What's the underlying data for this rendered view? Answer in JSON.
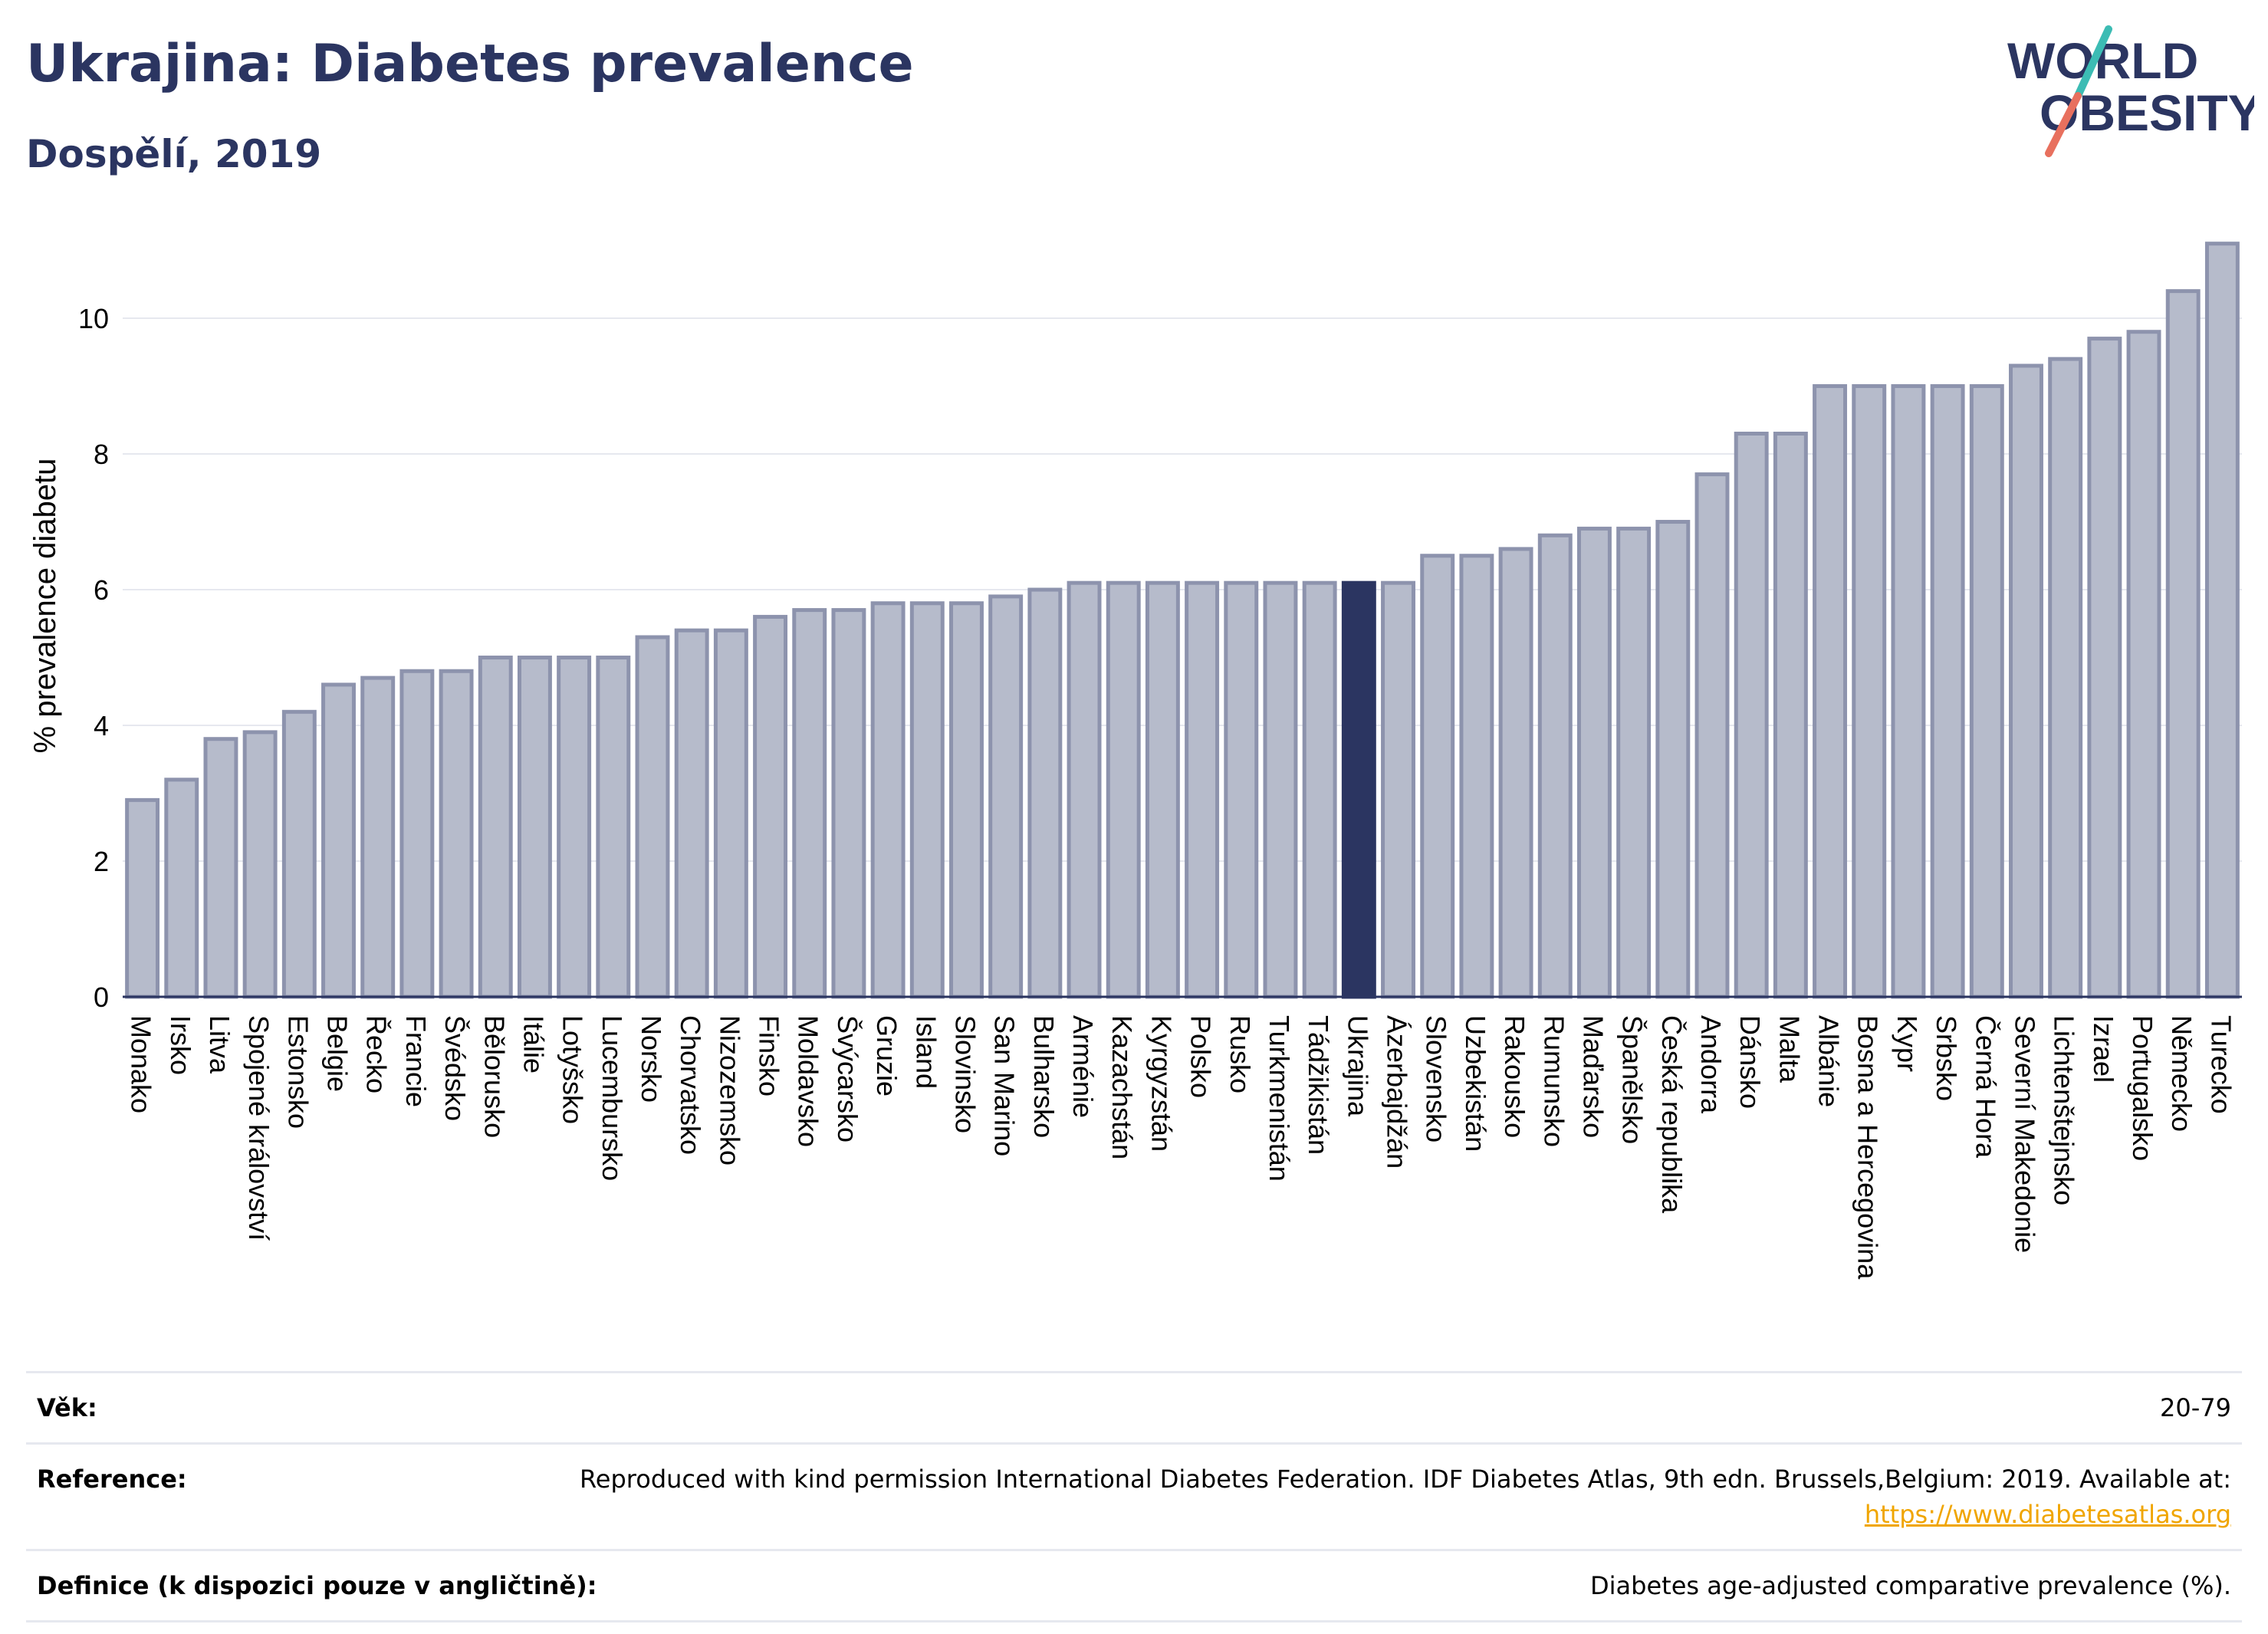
{
  "header": {
    "title": "Ukrajina: Diabetes prevalence",
    "subtitle": "Dospělí, 2019",
    "logo_line1": "WORLD",
    "logo_line2": "OBESITY"
  },
  "colors": {
    "bar": "#b6bbcb",
    "bar_stroke": "#8d93ad",
    "highlight": "#2b3561",
    "axis_text": "#000000",
    "gridline": "#e6e8ef",
    "link": "#f0a500",
    "logo_slash_teal": "#3cbcb4",
    "logo_slash_coral": "#e8705e"
  },
  "chart_data": {
    "type": "bar",
    "title": "Ukrajina: Diabetes prevalence",
    "subtitle": "Dospělí, 2019",
    "xlabel": "",
    "ylabel": "% prevalence diabetu",
    "ylim": [
      0,
      11.3
    ],
    "yticks": [
      0,
      2,
      4,
      6,
      8,
      10
    ],
    "grid": true,
    "highlight": "Ukrajina",
    "categories": [
      "Monako",
      "Irsko",
      "Litva",
      "Spojené království",
      "Estonsko",
      "Belgie",
      "Řecko",
      "Francie",
      "Švédsko",
      "Bělorusko",
      "Itálie",
      "Lotyšsko",
      "Lucembursko",
      "Norsko",
      "Chorvatsko",
      "Nizozemsko",
      "Finsko",
      "Moldavsko",
      "Švýcarsko",
      "Gruzie",
      "Island",
      "Slovinsko",
      "San Marino",
      "Bulharsko",
      "Arménie",
      "Kazachstán",
      "Kyrgyzstán",
      "Polsko",
      "Rusko",
      "Turkmenistán",
      "Tádžikistán",
      "Ukrajina",
      "Ázerbajdžán",
      "Slovensko",
      "Uzbekistán",
      "Rakousko",
      "Rumunsko",
      "Maďarsko",
      "Španělsko",
      "Česká republika",
      "Andorra",
      "Dánsko",
      "Malta",
      "Albánie",
      "Bosna a Hercegovina",
      "Kypr",
      "Srbsko",
      "Černá Hora",
      "Severní Makedonie",
      "Lichtenštejnsko",
      "Izrael",
      "Portugalsko",
      "Německo",
      "Turecko"
    ],
    "values": [
      2.9,
      3.2,
      3.8,
      3.9,
      4.2,
      4.6,
      4.7,
      4.8,
      4.8,
      5.0,
      5.0,
      5.0,
      5.0,
      5.3,
      5.4,
      5.4,
      5.6,
      5.7,
      5.7,
      5.8,
      5.8,
      5.8,
      5.9,
      6.0,
      6.1,
      6.1,
      6.1,
      6.1,
      6.1,
      6.1,
      6.1,
      6.1,
      6.1,
      6.5,
      6.5,
      6.6,
      6.8,
      6.9,
      6.9,
      7.0,
      7.7,
      8.3,
      8.3,
      9.0,
      9.0,
      9.0,
      9.0,
      9.0,
      9.3,
      9.4,
      9.7,
      9.8,
      10.4,
      11.1
    ]
  },
  "meta": {
    "rows": [
      {
        "label": "Věk:",
        "value": "20-79"
      },
      {
        "label": "Reference:",
        "value": "Reproduced with kind permission International Diabetes Federation. IDF Diabetes Atlas, 9th edn. Brussels,Belgium: 2019. Available at:",
        "link": "https://www.diabetesatlas.org"
      },
      {
        "label": "Definice (k dispozici pouze v angličtině):",
        "value": "Diabetes age-adjusted comparative prevalence (%)."
      }
    ]
  }
}
